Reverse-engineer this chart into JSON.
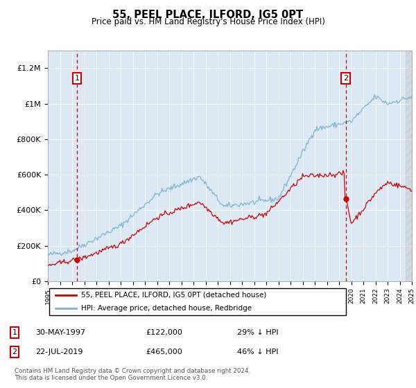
{
  "title": "55, PEEL PLACE, ILFORD, IG5 0PT",
  "subtitle": "Price paid vs. HM Land Registry's House Price Index (HPI)",
  "background_color": "#dce9f5",
  "plot_bg_color": "#dce9f5",
  "x_start_year": 1995,
  "x_end_year": 2025,
  "ylim": [
    0,
    1300000
  ],
  "yticks": [
    0,
    200000,
    400000,
    600000,
    800000,
    1000000,
    1200000
  ],
  "ytick_labels": [
    "£0",
    "£200K",
    "£400K",
    "£600K",
    "£800K",
    "£1M",
    "£1.2M"
  ],
  "sale1_date": 1997.41,
  "sale1_price": 122000,
  "sale1_label": "1",
  "sale2_date": 2019.55,
  "sale2_price": 465000,
  "sale2_label": "2",
  "hpi_color": "#7ab3d4",
  "sale_color": "#cc0000",
  "dashed_line_color": "#cc0000",
  "legend_label_sale": "55, PEEL PLACE, ILFORD, IG5 0PT (detached house)",
  "legend_label_hpi": "HPI: Average price, detached house, Redbridge",
  "footer": "Contains HM Land Registry data © Crown copyright and database right 2024.\nThis data is licensed under the Open Government Licence v3.0."
}
